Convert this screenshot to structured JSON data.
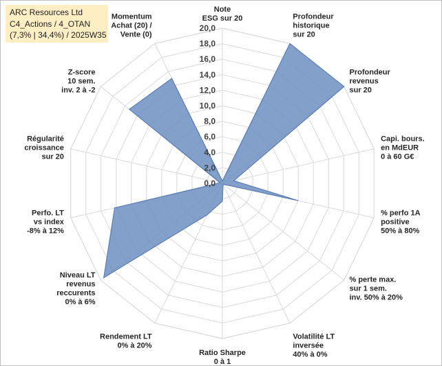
{
  "title_box": {
    "line1": "ARC Resources Ltd",
    "line2": "C4_Actions / 4_OTAN",
    "line3": "(7,3% | 34,4%) / 2025W35"
  },
  "chart_data": {
    "type": "radar",
    "rmin": 0,
    "rmax": 20,
    "tick_step": 2,
    "tick_labels": [
      "0,0",
      "2,0",
      "4,0",
      "6,0",
      "8,0",
      "10,0",
      "12,0",
      "14,0",
      "16,0",
      "18,0",
      "20,0"
    ],
    "grid": true,
    "axes": [
      [
        "Note",
        "ESG sur 20"
      ],
      [
        "Profondeur",
        "historique",
        "sur 20"
      ],
      [
        "Profondeur",
        "revenus",
        "sur 20"
      ],
      [
        "Capi. bours.",
        "en MdEUR",
        "0 à 60 G€"
      ],
      [
        "% perfo 1A",
        "positive",
        "50% à 80%"
      ],
      [
        "% perte max.",
        "sur 1 sem.",
        "inv. 50% à 20%"
      ],
      [
        "Volatilité LT",
        "inversée",
        "40% à 0%"
      ],
      [
        "Ratio Sharpe",
        "0 à 1"
      ],
      [
        "Rendement LT",
        "0% à 20%"
      ],
      [
        "Niveau LT",
        "revenus",
        "reccurents",
        "0% à 6%"
      ],
      [
        "Perfo. LT",
        "vs index",
        "-8% à 12%"
      ],
      [
        "Régularité",
        "croissance",
        "sur 20"
      ],
      [
        "Z-score",
        "10 sem.",
        "inv. 2 à -2"
      ],
      [
        "Momentum",
        "Achat (20) /",
        "Vente (0)"
      ]
    ],
    "values": [
      0.3,
      20,
      20,
      1.5,
      10,
      0.2,
      0.2,
      2.3,
      4.5,
      19.5,
      14.2,
      0.3,
      15.3,
      15.0
    ],
    "series_color": "#5b7db6",
    "series_fill": "#6d8fc2",
    "grid_color": "#d9d9d9"
  }
}
